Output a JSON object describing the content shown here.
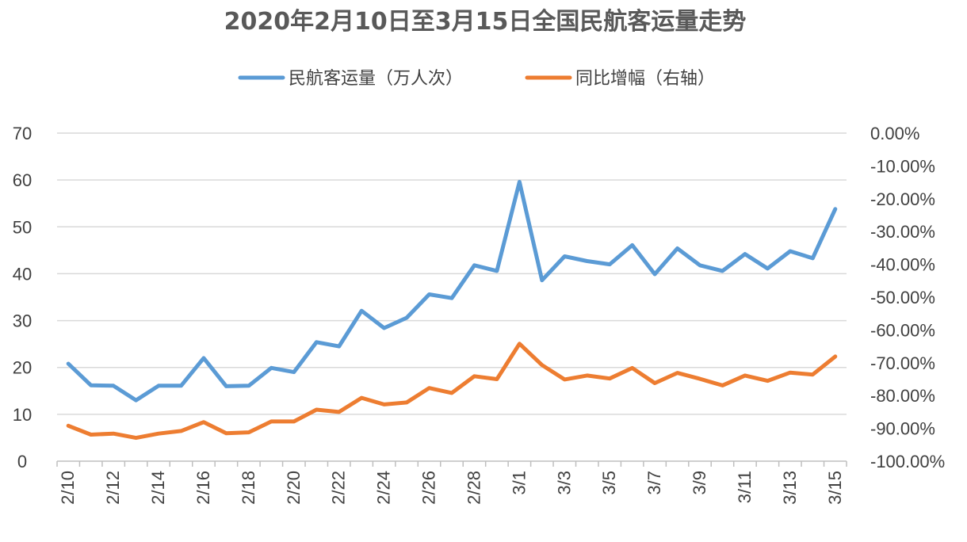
{
  "chart_data": {
    "type": "line",
    "title": "2020年2月10日至3月15日全国民航客运量走势",
    "legend_position": "top",
    "grid": true,
    "x": [
      "2/10",
      "2/11",
      "2/12",
      "2/13",
      "2/14",
      "2/15",
      "2/16",
      "2/17",
      "2/18",
      "2/19",
      "2/20",
      "2/21",
      "2/22",
      "2/23",
      "2/24",
      "2/25",
      "2/26",
      "2/27",
      "2/28",
      "2/29",
      "3/1",
      "3/2",
      "3/3",
      "3/4",
      "3/5",
      "3/6",
      "3/7",
      "3/8",
      "3/9",
      "3/10",
      "3/11",
      "3/12",
      "3/13",
      "3/14",
      "3/15"
    ],
    "x_tick_labels": [
      "2/10",
      "2/12",
      "2/14",
      "2/16",
      "2/18",
      "2/20",
      "2/22",
      "2/24",
      "2/26",
      "2/28",
      "3/1",
      "3/3",
      "3/5",
      "3/7",
      "3/9",
      "3/11",
      "3/13",
      "3/15"
    ],
    "y_left": {
      "ylim": [
        0,
        70
      ],
      "ticks": [
        "0",
        "10",
        "20",
        "30",
        "40",
        "50",
        "60",
        "70"
      ]
    },
    "y_right": {
      "ylim": [
        -100,
        0
      ],
      "ticks": [
        "0.00%",
        "-10.00%",
        "-20.00%",
        "-30.00%",
        "-40.00%",
        "-50.00%",
        "-60.00%",
        "-70.00%",
        "-80.00%",
        "-90.00%",
        "-100.00%"
      ]
    },
    "series": [
      {
        "name": "民航客运量（万人次）",
        "axis": "left",
        "color": "#5b9bd5",
        "values": [
          20.8,
          16.2,
          16.1,
          13.0,
          16.1,
          16.1,
          22.0,
          16.0,
          16.1,
          19.9,
          19.0,
          25.4,
          24.5,
          32.1,
          28.4,
          30.6,
          35.6,
          34.8,
          41.8,
          40.6,
          59.6,
          38.6,
          43.7,
          42.7,
          42.0,
          46.1,
          39.9,
          45.4,
          41.8,
          40.6,
          44.2,
          41.1,
          44.8,
          43.3,
          53.8
        ]
      },
      {
        "name": "同比增幅（右轴）",
        "axis": "right",
        "color": "#ed7d31",
        "values": [
          -89.2,
          -91.9,
          -91.6,
          -92.9,
          -91.6,
          -90.8,
          -88.1,
          -91.5,
          -91.2,
          -87.9,
          -87.9,
          -84.3,
          -85.0,
          -80.7,
          -82.7,
          -82.1,
          -77.7,
          -79.2,
          -74.1,
          -75.0,
          -64.2,
          -70.7,
          -75.1,
          -73.9,
          -74.8,
          -71.6,
          -76.2,
          -73.1,
          -74.9,
          -76.9,
          -73.9,
          -75.5,
          -73.0,
          -73.6,
          -68.1
        ]
      }
    ]
  }
}
